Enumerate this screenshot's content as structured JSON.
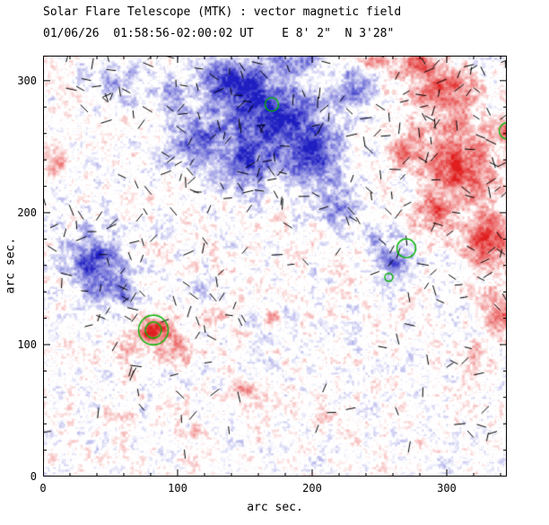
{
  "chart_data": {
    "type": "heatmap",
    "title": "Solar Flare Telescope (MTK) : vector magnetic field",
    "subtitle": "01/06/26  01:58:56-02:00:02 UT    E 8' 2\"  N 3'28\"",
    "xlabel": "arc sec.",
    "ylabel": "arc sec.",
    "xlim": [
      0,
      344.7
    ],
    "ylim": [
      0,
      319
    ],
    "x_ticks": [
      0,
      100,
      200,
      300
    ],
    "y_ticks": [
      0,
      100,
      200,
      300
    ],
    "minor_tick_interval": 20,
    "colors": {
      "positive": "#d03030",
      "negative": "#2626c2",
      "zero": "#ffffff",
      "contour": "#00b400",
      "vector": "#000000",
      "axis": "#000000"
    },
    "field_blobs": [
      [
        165,
        272,
        38,
        28,
        -0.75
      ],
      [
        200,
        245,
        22,
        22,
        -0.7
      ],
      [
        140,
        300,
        26,
        16,
        -0.6
      ],
      [
        112,
        252,
        20,
        18,
        -0.5
      ],
      [
        150,
        235,
        18,
        18,
        -0.55
      ],
      [
        220,
        205,
        15,
        14,
        -0.5
      ],
      [
        230,
        295,
        14,
        16,
        -0.45
      ],
      [
        185,
        320,
        20,
        12,
        -0.5
      ],
      [
        60,
        300,
        22,
        13,
        -0.3
      ],
      [
        92,
        288,
        13,
        11,
        -0.3
      ],
      [
        38,
        162,
        20,
        22,
        -0.7
      ],
      [
        55,
        140,
        11,
        10,
        -0.45
      ],
      [
        115,
        143,
        9,
        7,
        -0.3
      ],
      [
        262,
        162,
        13,
        11,
        -0.55
      ],
      [
        248,
        178,
        8,
        8,
        -0.35
      ],
      [
        230,
        128,
        7,
        6,
        -0.25
      ],
      [
        205,
        152,
        7,
        5,
        -0.2
      ],
      [
        308,
        238,
        26,
        30,
        0.75
      ],
      [
        298,
        292,
        22,
        16,
        0.6
      ],
      [
        330,
        178,
        18,
        22,
        0.7
      ],
      [
        290,
        200,
        13,
        13,
        0.55
      ],
      [
        268,
        248,
        13,
        13,
        0.45
      ],
      [
        340,
        125,
        13,
        18,
        0.5
      ],
      [
        322,
        92,
        9,
        9,
        0.3
      ],
      [
        278,
        312,
        18,
        10,
        0.55
      ],
      [
        253,
        318,
        10,
        7,
        0.4
      ],
      [
        240,
        315,
        8,
        6,
        0.35
      ],
      [
        345,
        262,
        7,
        9,
        0.55
      ],
      [
        82,
        111,
        12,
        10,
        0.85
      ],
      [
        100,
        96,
        13,
        10,
        0.45
      ],
      [
        62,
        95,
        11,
        9,
        0.4
      ],
      [
        125,
        120,
        9,
        7,
        0.35
      ],
      [
        148,
        64,
        11,
        7,
        0.35
      ],
      [
        183,
        54,
        7,
        6,
        0.3
      ],
      [
        207,
        42,
        9,
        6,
        0.25
      ],
      [
        118,
        34,
        9,
        6,
        0.25
      ],
      [
        58,
        44,
        9,
        6,
        0.2
      ],
      [
        12,
        240,
        9,
        11,
        0.35
      ],
      [
        6,
        150,
        7,
        7,
        0.25
      ],
      [
        170,
        122,
        7,
        6,
        0.25
      ]
    ],
    "green_contours": [
      {
        "x": 170,
        "y": 282,
        "r": 5
      },
      {
        "x": 270,
        "y": 173,
        "r": 7
      },
      {
        "x": 257,
        "y": 151,
        "r": 3
      },
      {
        "x": 82,
        "y": 111,
        "r": 6
      },
      {
        "x": 82,
        "y": 111,
        "r": 11
      },
      {
        "x": 345,
        "y": 262,
        "r": 6
      }
    ],
    "vector_regions": [
      [
        55,
        195,
        240,
        320,
        95
      ],
      [
        10,
        265,
        55,
        318,
        14
      ],
      [
        240,
        135,
        345,
        320,
        85
      ],
      [
        8,
        120,
        80,
        205,
        24
      ],
      [
        40,
        75,
        150,
        148,
        30
      ],
      [
        85,
        148,
        235,
        205,
        14
      ],
      [
        15,
        15,
        335,
        70,
        20
      ],
      [
        245,
        72,
        340,
        135,
        10
      ],
      [
        0,
        0,
        345,
        319,
        22
      ]
    ],
    "noise": {
      "seed": 7,
      "coarse_cell": 10,
      "coarse_amp": 0.2,
      "fine_cell": 3,
      "fine_amp": 0.17,
      "pixel_amp": 0.05
    }
  }
}
